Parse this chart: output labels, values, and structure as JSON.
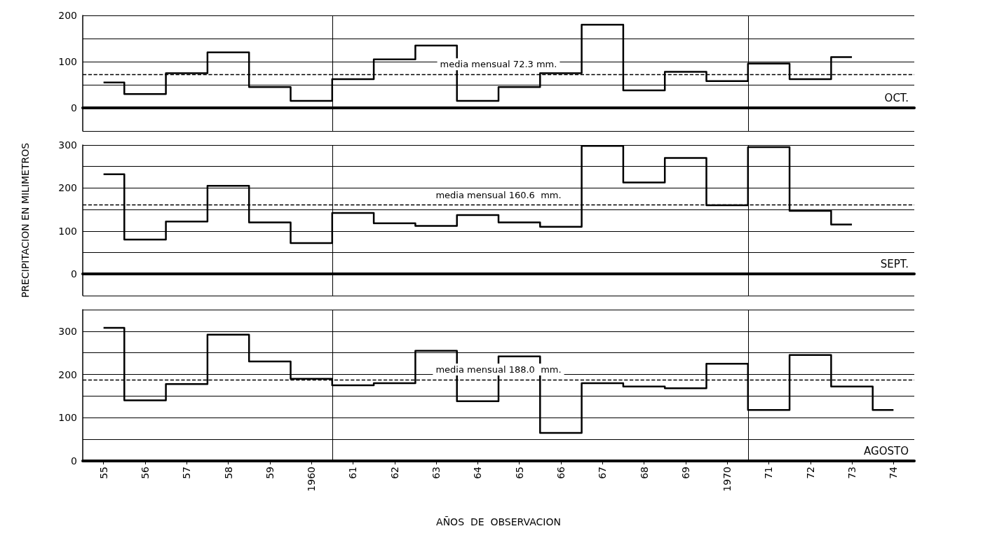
{
  "chart_data": [
    {
      "type": "step",
      "title": "OCT.",
      "x": [
        1955,
        1956,
        1957,
        1958,
        1959,
        1960,
        1961,
        1962,
        1963,
        1964,
        1965,
        1966,
        1967,
        1968,
        1969,
        1970,
        1971,
        1972,
        1973
      ],
      "series": [
        {
          "color": "#000000",
          "values": [
            55,
            30,
            75,
            120,
            45,
            15,
            62,
            105,
            135,
            15,
            45,
            75,
            180,
            38,
            78,
            58,
            96,
            62,
            110
          ]
        }
      ],
      "xlim": [
        1954.5,
        1974.5
      ],
      "ylim": [
        -50,
        200
      ],
      "yticks": [
        {
          "value": -50,
          "label": null
        },
        0,
        {
          "value": 50,
          "label": null
        },
        100,
        {
          "value": 150,
          "label": null
        },
        200
      ],
      "grid": "y",
      "tick_labels": "y",
      "line_style": "solid",
      "ref_lines": [
        {
          "axis": "y",
          "value": 72.3,
          "label": "media mensual 72.3 mm.",
          "line_style": "dashed"
        },
        {
          "axis": "x",
          "value": 1960.5,
          "label": null
        },
        {
          "axis": "x",
          "value": 1970.5,
          "label": null
        }
      ]
    },
    {
      "type": "step",
      "title": "SEPT.",
      "ylabel": "PRECIPITACION EN MILIMETROS",
      "x": [
        1955,
        1956,
        1957,
        1958,
        1959,
        1960,
        1961,
        1962,
        1963,
        1964,
        1965,
        1966,
        1967,
        1968,
        1969,
        1970,
        1971,
        1972,
        1973
      ],
      "series": [
        {
          "color": "#000000",
          "values": [
            232,
            80,
            122,
            205,
            120,
            72,
            142,
            118,
            112,
            137,
            120,
            110,
            298,
            213,
            270,
            160,
            295,
            147,
            115
          ]
        }
      ],
      "xlim": [
        1954.5,
        1974.5
      ],
      "ylim": [
        -50,
        300
      ],
      "yticks": [
        {
          "value": -50,
          "label": null
        },
        0,
        {
          "value": 50,
          "label": null
        },
        100,
        {
          "value": 150,
          "label": null
        },
        200,
        {
          "value": 250,
          "label": null
        },
        300
      ],
      "grid": "y",
      "tick_labels": "y",
      "line_style": "solid",
      "ref_lines": [
        {
          "axis": "y",
          "value": 160.6,
          "label": "media mensual 160.6  mm.",
          "line_style": "dashed"
        },
        {
          "axis": "x",
          "value": 1960.5,
          "label": null
        },
        {
          "axis": "x",
          "value": 1970.5,
          "label": null
        }
      ]
    },
    {
      "type": "step",
      "title": "AGOSTO",
      "xlabel": "AÑOS  DE  OBSERVACION",
      "x": [
        1955,
        1956,
        1957,
        1958,
        1959,
        1960,
        1961,
        1962,
        1963,
        1964,
        1965,
        1966,
        1967,
        1968,
        1969,
        1970,
        1971,
        1972,
        1973,
        1974
      ],
      "series": [
        {
          "color": "#000000",
          "values": [
            308,
            140,
            178,
            292,
            230,
            190,
            175,
            180,
            255,
            138,
            242,
            65,
            180,
            172,
            168,
            225,
            118,
            245,
            172,
            118
          ]
        }
      ],
      "xlim": [
        1954.5,
        1974.5
      ],
      "ylim": [
        0,
        350
      ],
      "yticks": [
        0,
        {
          "value": 50,
          "label": null
        },
        100,
        {
          "value": 150,
          "label": null
        },
        200,
        {
          "value": 250,
          "label": null
        },
        300,
        {
          "value": 350,
          "label": null
        }
      ],
      "xticks": [
        {
          "value": 1955,
          "label": "55"
        },
        {
          "value": 1956,
          "label": "56"
        },
        {
          "value": 1957,
          "label": "57"
        },
        {
          "value": 1958,
          "label": "58"
        },
        {
          "value": 1959,
          "label": "59"
        },
        {
          "value": 1960,
          "label": "1960"
        },
        {
          "value": 1961,
          "label": "61"
        },
        {
          "value": 1962,
          "label": "62"
        },
        {
          "value": 1963,
          "label": "63"
        },
        {
          "value": 1964,
          "label": "64"
        },
        {
          "value": 1965,
          "label": "65"
        },
        {
          "value": 1966,
          "label": "66"
        },
        {
          "value": 1967,
          "label": "67"
        },
        {
          "value": 1968,
          "label": "68"
        },
        {
          "value": 1969,
          "label": "69"
        },
        {
          "value": 1970,
          "label": "1970"
        },
        {
          "value": 1971,
          "label": "71"
        },
        {
          "value": 1972,
          "label": "72"
        },
        {
          "value": 1973,
          "label": "73"
        },
        {
          "value": 1974,
          "label": "74"
        }
      ],
      "grid": "y",
      "line_style": "solid",
      "ref_lines": [
        {
          "axis": "y",
          "value": 188.0,
          "label": "media mensual 188.0  mm.",
          "line_style": "dashed"
        },
        {
          "axis": "x",
          "value": 1960.5,
          "label": null
        },
        {
          "axis": "x",
          "value": 1970.5,
          "label": null
        }
      ]
    }
  ]
}
